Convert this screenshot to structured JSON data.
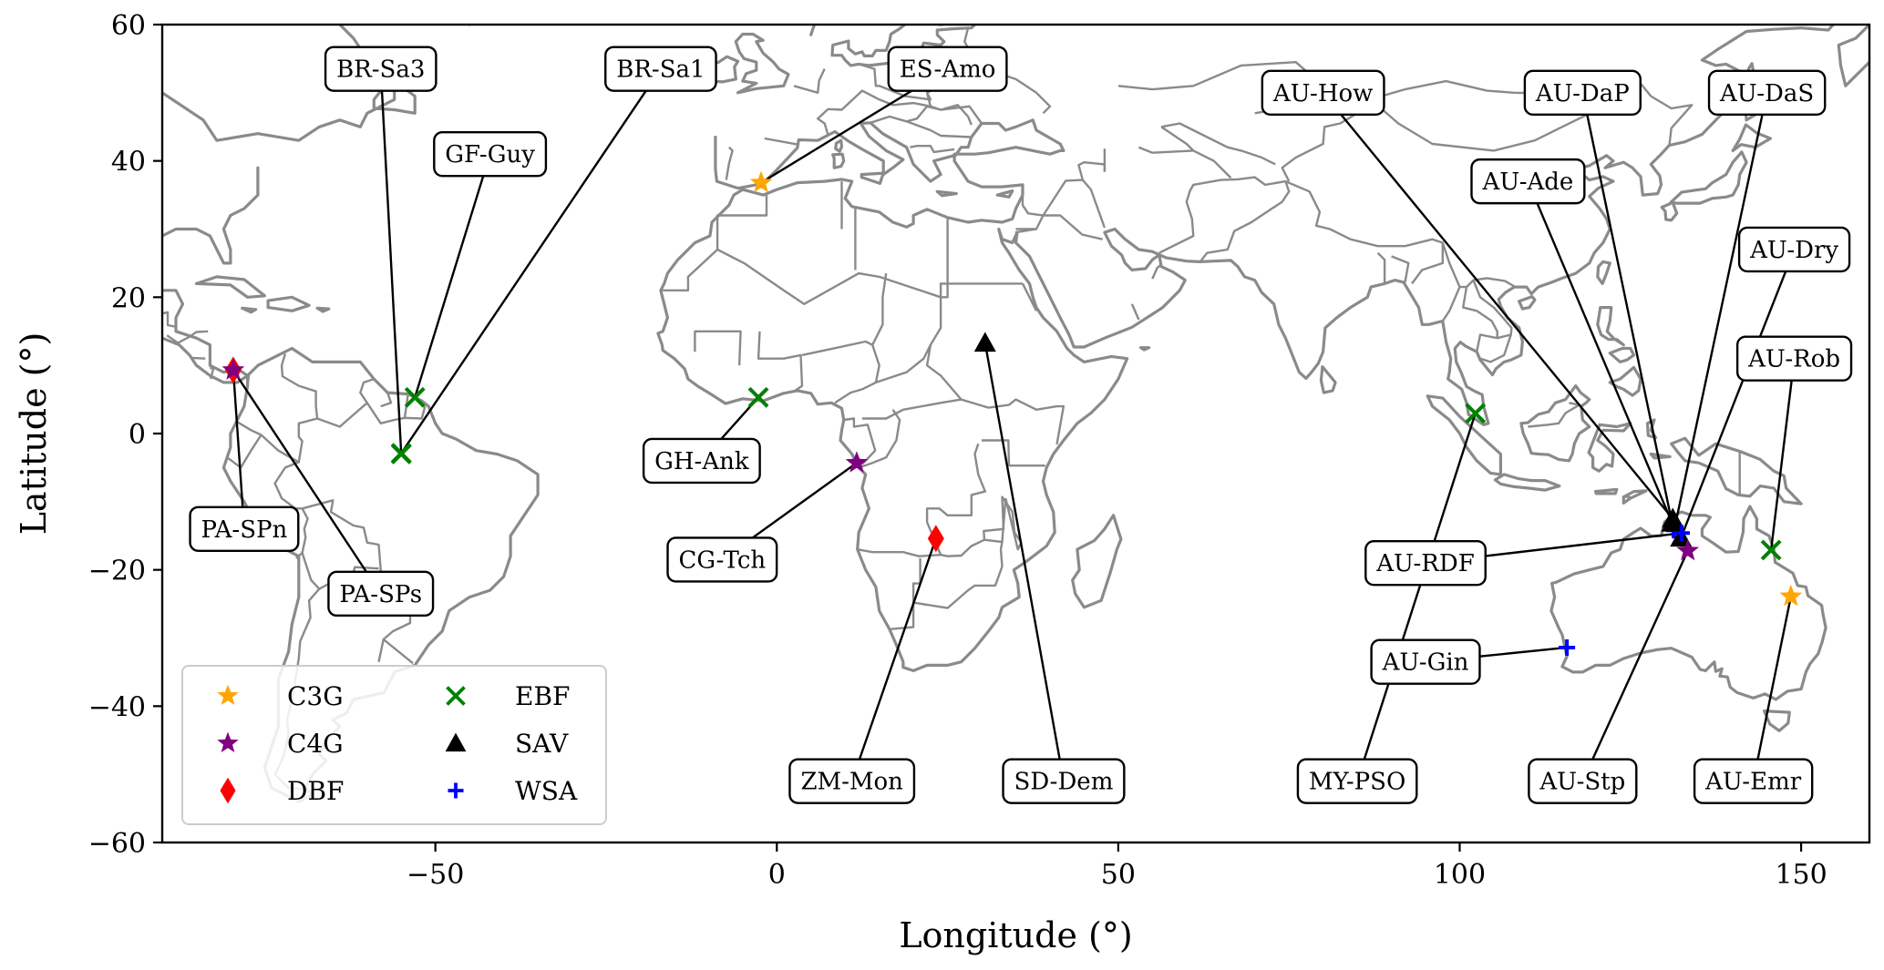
{
  "chart_data": {
    "type": "scatter",
    "xlabel": "Longitude (°)",
    "ylabel": "Latitude (°)",
    "xlim": [
      -90,
      160
    ],
    "ylim": [
      -60,
      60
    ],
    "xticks": [
      -50,
      0,
      50,
      100,
      150
    ],
    "yticks": [
      -60,
      -40,
      -20,
      0,
      20,
      40,
      60
    ],
    "xtick_labels": [
      "−50",
      "0",
      "50",
      "100",
      "150"
    ],
    "ytick_labels": [
      "−60",
      "−40",
      "−20",
      "0",
      "20",
      "40",
      "60"
    ],
    "legend_position": "lower-left",
    "grid": false,
    "categories": [
      {
        "key": "C3G",
        "label": "C3G",
        "marker": "star",
        "color": "#ffa500"
      },
      {
        "key": "C4G",
        "label": "C4G",
        "marker": "star",
        "color": "#800080"
      },
      {
        "key": "DBF",
        "label": "DBF",
        "marker": "diamond",
        "color": "#ff0000"
      },
      {
        "key": "EBF",
        "label": "EBF",
        "marker": "x",
        "color": "#008000"
      },
      {
        "key": "SAV",
        "label": "SAV",
        "marker": "triangle",
        "color": "#000000"
      },
      {
        "key": "WSA",
        "label": "WSA",
        "marker": "plus",
        "color": "#0000ff"
      }
    ],
    "sites": [
      {
        "label": "BR-Sa3",
        "cat": "EBF",
        "lon": -55.0,
        "lat": -3.0,
        "label_lon": -58,
        "label_lat": 53.5
      },
      {
        "label": "BR-Sa1",
        "cat": "EBF",
        "lon": -55.0,
        "lat": -2.9,
        "label_lon": -17,
        "label_lat": 53.5
      },
      {
        "label": "GF-Guy",
        "cat": "EBF",
        "lon": -53.0,
        "lat": 5.3,
        "label_lon": -42,
        "label_lat": 41
      },
      {
        "label": "ES-Amo",
        "cat": "C3G",
        "lon": -2.3,
        "lat": 36.8,
        "label_lon": 25,
        "label_lat": 53.5
      },
      {
        "label": "PA-SPn",
        "cat": "DBF",
        "lon": -79.6,
        "lat": 9.3,
        "label_lon": -78,
        "label_lat": -14
      },
      {
        "label": "PA-SPs",
        "cat": "C4G",
        "lon": -79.6,
        "lat": 9.3,
        "label_lon": -58,
        "label_lat": -23.5
      },
      {
        "label": "GH-Ank",
        "cat": "EBF",
        "lon": -2.7,
        "lat": 5.3,
        "label_lon": -11,
        "label_lat": -4
      },
      {
        "label": "CG-Tch",
        "cat": "C4G",
        "lon": 11.7,
        "lat": -4.3,
        "label_lon": -8,
        "label_lat": -18.5
      },
      {
        "label": "ZM-Mon",
        "cat": "DBF",
        "lon": 23.3,
        "lat": -15.4,
        "label_lon": 11,
        "label_lat": -51
      },
      {
        "label": "SD-Dem",
        "cat": "SAV",
        "lon": 30.5,
        "lat": 13.3,
        "label_lon": 42,
        "label_lat": -51
      },
      {
        "label": "AU-How",
        "cat": "SAV",
        "lon": 131.2,
        "lat": -12.5,
        "label_lon": 80,
        "label_lat": 50
      },
      {
        "label": "AU-DaP",
        "cat": "WSA",
        "lon": 131.3,
        "lat": -14.1,
        "label_lon": 118,
        "label_lat": 50
      },
      {
        "label": "AU-DaS",
        "cat": "WSA",
        "lon": 131.4,
        "lat": -14.2,
        "label_lon": 145,
        "label_lat": 50
      },
      {
        "label": "AU-Ade",
        "cat": "SAV",
        "lon": 131.1,
        "lat": -13.1,
        "label_lon": 110,
        "label_lat": 37
      },
      {
        "label": "AU-Dry",
        "cat": "SAV",
        "lon": 132.4,
        "lat": -15.3,
        "label_lon": 149,
        "label_lat": 27
      },
      {
        "label": "AU-Rob",
        "cat": "EBF",
        "lon": 145.6,
        "lat": -17.1,
        "label_lon": 149,
        "label_lat": 11
      },
      {
        "label": "MY-PSO",
        "cat": "EBF",
        "lon": 102.3,
        "lat": 2.97,
        "label_lon": 85,
        "label_lat": -51
      },
      {
        "label": "AU-RDF",
        "cat": "WSA",
        "lon": 132.5,
        "lat": -14.6,
        "label_lon": 95,
        "label_lat": -19
      },
      {
        "label": "AU-Gin",
        "cat": "WSA",
        "lon": 115.7,
        "lat": -31.4,
        "label_lon": 95,
        "label_lat": -33.5
      },
      {
        "label": "AU-Stp",
        "cat": "C4G",
        "lon": 133.4,
        "lat": -17.2,
        "label_lon": 118,
        "label_lat": -51
      },
      {
        "label": "AU-Emr",
        "cat": "C3G",
        "lon": 148.5,
        "lat": -23.9,
        "label_lon": 143,
        "label_lat": -51
      }
    ]
  }
}
